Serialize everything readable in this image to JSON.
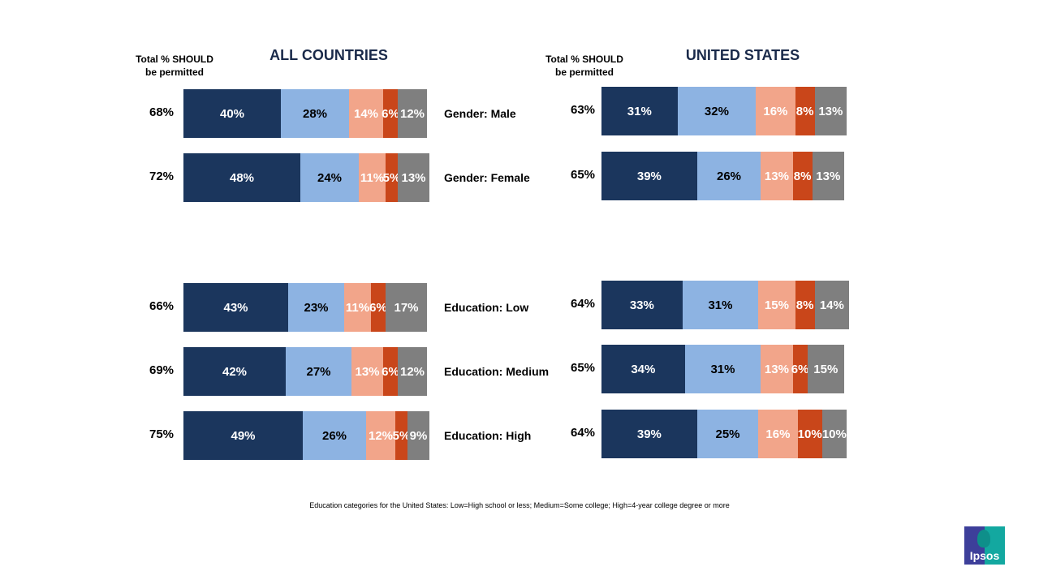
{
  "chart_data": [
    {
      "type": "bar",
      "orientation": "horizontal",
      "stacked": true,
      "title": "ALL COUNTRIES",
      "total_header": "Total % SHOULD be permitted",
      "categories": [
        "Gender: Male",
        "Gender: Female",
        "Education: Low",
        "Education: Medium",
        "Education: High"
      ],
      "totals": [
        "68%",
        "72%",
        "66%",
        "69%",
        "75%"
      ],
      "rows": [
        [
          40,
          28,
          14,
          6,
          12
        ],
        [
          48,
          24,
          11,
          5,
          13
        ],
        [
          43,
          23,
          11,
          6,
          17
        ],
        [
          42,
          27,
          13,
          6,
          12
        ],
        [
          49,
          26,
          12,
          5,
          9
        ]
      ]
    },
    {
      "type": "bar",
      "orientation": "horizontal",
      "stacked": true,
      "title": "UNITED STATES",
      "total_header": "Total % SHOULD be permitted",
      "categories": [
        "Gender: Male",
        "Gender: Female",
        "Education: Low",
        "Education: Medium",
        "Education: High"
      ],
      "totals": [
        "63%",
        "65%",
        "64%",
        "65%",
        "64%"
      ],
      "rows": [
        [
          31,
          32,
          16,
          8,
          13
        ],
        [
          39,
          26,
          13,
          8,
          13
        ],
        [
          33,
          31,
          15,
          8,
          14
        ],
        [
          34,
          31,
          13,
          6,
          15
        ],
        [
          39,
          25,
          16,
          10,
          10
        ]
      ]
    }
  ],
  "segment_colors": [
    "#1b365d",
    "#8db3e2",
    "#f2a58a",
    "#c9461a",
    "#7f7f7f"
  ],
  "segment_text_colors": [
    "#ffffff",
    "#000000",
    "#ffffff",
    "#ffffff",
    "#ffffff"
  ],
  "total_header_line1": "Total % SHOULD",
  "total_header_line2": "be permitted",
  "footnote": "Education  categories for the United  States: Low=High school or less; Medium=Some  college; High=4-year college degree or more",
  "logo_text": "Ipsos"
}
